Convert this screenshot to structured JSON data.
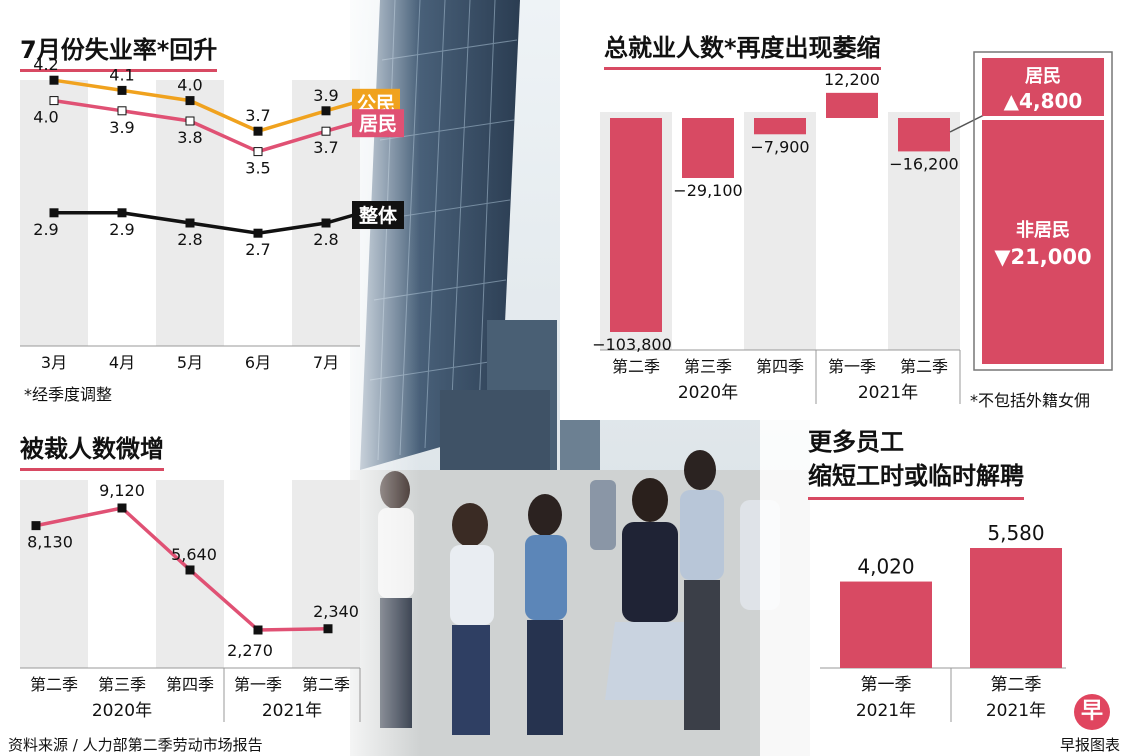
{
  "colors": {
    "accent": "#d84a63",
    "citizen": "#f0a21e",
    "resident": "#e05174",
    "overall": "#111111",
    "bar": "#d84a63",
    "column_bg": "#ebebeb"
  },
  "unemployment": {
    "title": "7月份失业率*回升",
    "note": "*经季度调整",
    "chart_data": {
      "type": "line",
      "categories": [
        "3月",
        "4月",
        "5月",
        "6月",
        "7月"
      ],
      "series": [
        {
          "name": "公民",
          "values": [
            4.2,
            4.1,
            4.0,
            3.7,
            3.9
          ],
          "value_labels": [
            "4.2",
            "4.1",
            "4.0",
            "3.7",
            "3.9"
          ]
        },
        {
          "name": "居民",
          "values": [
            4.0,
            3.9,
            3.8,
            3.5,
            3.7
          ],
          "value_labels": [
            "4.0",
            "3.9",
            "3.8",
            "3.5",
            "3.7"
          ]
        },
        {
          "name": "整体",
          "values": [
            2.9,
            2.9,
            2.8,
            2.7,
            2.8
          ],
          "value_labels": [
            "2.9",
            "2.9",
            "2.8",
            "2.7",
            "2.8"
          ]
        }
      ]
    }
  },
  "employment": {
    "title": "总就业人数*再度出现萎缩",
    "note": "*不包括外籍女佣",
    "chart_data": {
      "type": "bar",
      "categories": [
        "第二季",
        "第三季",
        "第四季",
        "第一季",
        "第二季"
      ],
      "values": [
        -103800,
        -29100,
        -7900,
        12200,
        -16200
      ],
      "value_labels": [
        "−103,800",
        "−29,100",
        "−7,900",
        "12,200",
        "−16,200"
      ],
      "year_groups": [
        "2020年",
        "2021年"
      ]
    },
    "breakdown": [
      {
        "label": "居民",
        "value": "▲4,800"
      },
      {
        "label": "非居民",
        "value": "▼21,000"
      }
    ]
  },
  "retrenchment": {
    "title": "被裁人数微增",
    "chart_data": {
      "type": "line",
      "categories": [
        "第二季",
        "第三季",
        "第四季",
        "第一季",
        "第二季"
      ],
      "values": [
        8130,
        9120,
        5640,
        2270,
        2340
      ],
      "value_labels": [
        "8,130",
        "9,120",
        "5,640",
        "2,270",
        "2,340"
      ],
      "year_groups": [
        "2020年",
        "2021年"
      ]
    }
  },
  "shorter_hours": {
    "title_lines": [
      "更多员工",
      "缩短工时或临时解聘"
    ],
    "chart_data": {
      "type": "bar",
      "categories": [
        "第一季",
        "第二季"
      ],
      "category_years": [
        "2021年",
        "2021年"
      ],
      "values": [
        4020,
        5580
      ],
      "value_labels": [
        "4,020",
        "5,580"
      ]
    }
  },
  "footer": {
    "source": "资料来源 / 人力部第二季劳动市场报告",
    "credit": "早报图表",
    "logo": "早"
  }
}
